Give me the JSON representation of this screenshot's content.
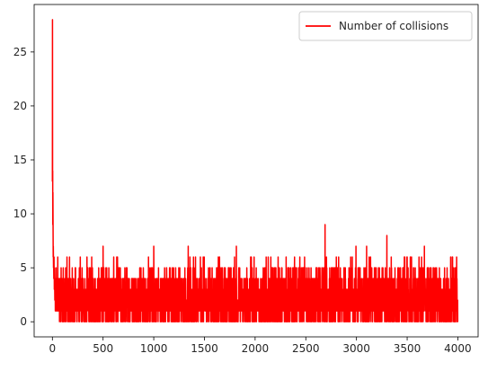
{
  "chart_data": {
    "type": "line",
    "title": "",
    "xlabel": "",
    "ylabel": "",
    "xlim": [
      -180,
      4200
    ],
    "ylim": [
      -1.4,
      29.4
    ],
    "xticks": [
      0,
      500,
      1000,
      1500,
      2000,
      2500,
      3000,
      3500,
      4000
    ],
    "xtick_labels": [
      "0",
      "500",
      "1000",
      "1500",
      "2000",
      "2500",
      "3000",
      "3500",
      "4000"
    ],
    "yticks": [
      0,
      5,
      10,
      15,
      20,
      25
    ],
    "ytick_labels": [
      "0",
      "5",
      "10",
      "15",
      "20",
      "25"
    ],
    "grid": false,
    "legend": {
      "position": "top-right",
      "entries": [
        "Number of collisions"
      ]
    },
    "series": [
      {
        "name": "Number of collisions",
        "color": "#ff0000",
        "x_start": 0,
        "x_step": 1,
        "head_values": [
          13,
          28,
          13,
          14,
          9,
          12,
          10,
          8,
          6,
          7,
          6,
          5,
          6,
          5,
          4,
          5,
          6,
          4,
          5,
          3,
          4,
          5,
          4,
          3,
          2,
          3,
          4,
          2,
          3,
          1,
          2,
          3,
          4,
          2,
          1,
          2,
          3,
          5,
          2,
          4,
          3,
          1,
          2,
          3,
          2,
          4,
          1,
          3,
          2,
          1
        ],
        "length": 4000,
        "body_range": [
          0,
          6
        ],
        "spikes": [
          [
            500,
            7
          ],
          [
            1000,
            7
          ],
          [
            1340,
            7
          ],
          [
            1815,
            7
          ],
          [
            2690,
            9
          ],
          [
            2995,
            7
          ],
          [
            3100,
            7
          ],
          [
            3300,
            8
          ],
          [
            3670,
            7
          ]
        ]
      }
    ]
  }
}
